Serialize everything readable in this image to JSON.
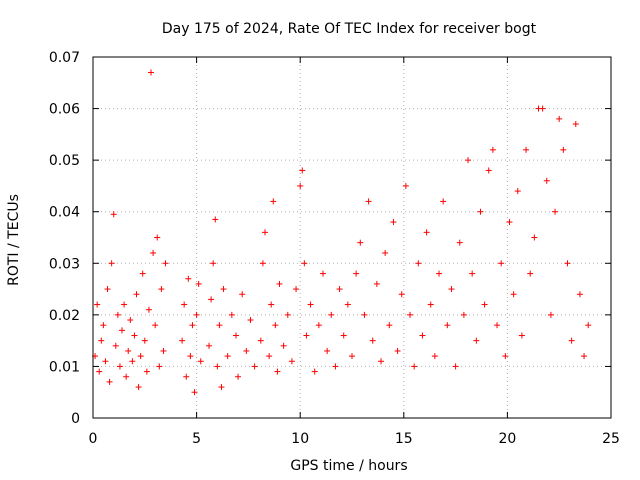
{
  "chart_data": {
    "type": "scatter",
    "title": "Day 175 of 2024, Rate Of TEC Index for receiver bogt",
    "xlabel": "GPS time / hours",
    "ylabel": "ROTI / TECUs",
    "xlim": [
      0,
      25
    ],
    "ylim": [
      0,
      0.07
    ],
    "x_ticks": [
      0,
      5,
      10,
      15,
      20,
      25
    ],
    "x_tick_labels": [
      "0",
      "5",
      "10",
      "15",
      "20",
      "25"
    ],
    "y_ticks": [
      0,
      0.01,
      0.02,
      0.03,
      0.04,
      0.05,
      0.06,
      0.07
    ],
    "y_tick_labels": [
      "0",
      "0.01",
      "0.02",
      "0.03",
      "0.04",
      "0.05",
      "0.06",
      "0.07"
    ],
    "grid": true,
    "marker": "+",
    "marker_color": "#ff0000",
    "series": [
      {
        "name": "ROTI",
        "points": [
          [
            0.1,
            0.012
          ],
          [
            0.2,
            0.022
          ],
          [
            0.3,
            0.009
          ],
          [
            0.4,
            0.015
          ],
          [
            0.5,
            0.018
          ],
          [
            0.6,
            0.011
          ],
          [
            0.7,
            0.025
          ],
          [
            0.8,
            0.007
          ],
          [
            0.9,
            0.03
          ],
          [
            1.0,
            0.0395
          ],
          [
            1.1,
            0.014
          ],
          [
            1.2,
            0.02
          ],
          [
            1.3,
            0.01
          ],
          [
            1.4,
            0.017
          ],
          [
            1.5,
            0.022
          ],
          [
            1.6,
            0.008
          ],
          [
            1.7,
            0.013
          ],
          [
            1.8,
            0.019
          ],
          [
            1.9,
            0.011
          ],
          [
            2.0,
            0.016
          ],
          [
            2.1,
            0.024
          ],
          [
            2.2,
            0.006
          ],
          [
            2.3,
            0.012
          ],
          [
            2.4,
            0.028
          ],
          [
            2.5,
            0.015
          ],
          [
            2.6,
            0.009
          ],
          [
            2.7,
            0.021
          ],
          [
            2.8,
            0.067
          ],
          [
            2.9,
            0.032
          ],
          [
            3.0,
            0.018
          ],
          [
            3.1,
            0.035
          ],
          [
            3.2,
            0.01
          ],
          [
            3.3,
            0.025
          ],
          [
            3.4,
            0.013
          ],
          [
            3.5,
            0.03
          ],
          [
            4.3,
            0.015
          ],
          [
            4.4,
            0.022
          ],
          [
            4.5,
            0.008
          ],
          [
            4.6,
            0.027
          ],
          [
            4.7,
            0.012
          ],
          [
            4.8,
            0.018
          ],
          [
            4.9,
            0.005
          ],
          [
            5.0,
            0.02
          ],
          [
            5.1,
            0.026
          ],
          [
            5.2,
            0.011
          ],
          [
            5.6,
            0.014
          ],
          [
            5.7,
            0.023
          ],
          [
            5.8,
            0.03
          ],
          [
            5.9,
            0.0385
          ],
          [
            6.0,
            0.01
          ],
          [
            6.1,
            0.018
          ],
          [
            6.2,
            0.006
          ],
          [
            6.3,
            0.025
          ],
          [
            6.5,
            0.012
          ],
          [
            6.7,
            0.02
          ],
          [
            6.9,
            0.016
          ],
          [
            7.0,
            0.008
          ],
          [
            7.2,
            0.024
          ],
          [
            7.4,
            0.013
          ],
          [
            7.6,
            0.019
          ],
          [
            7.8,
            0.01
          ],
          [
            8.1,
            0.015
          ],
          [
            8.2,
            0.03
          ],
          [
            8.3,
            0.036
          ],
          [
            8.5,
            0.012
          ],
          [
            8.6,
            0.022
          ],
          [
            8.7,
            0.042
          ],
          [
            8.8,
            0.018
          ],
          [
            8.9,
            0.009
          ],
          [
            9.0,
            0.026
          ],
          [
            9.2,
            0.014
          ],
          [
            9.4,
            0.02
          ],
          [
            9.6,
            0.011
          ],
          [
            9.8,
            0.025
          ],
          [
            10.0,
            0.045
          ],
          [
            10.1,
            0.048
          ],
          [
            10.2,
            0.03
          ],
          [
            10.3,
            0.016
          ],
          [
            10.5,
            0.022
          ],
          [
            10.7,
            0.009
          ],
          [
            10.9,
            0.018
          ],
          [
            11.1,
            0.028
          ],
          [
            11.3,
            0.013
          ],
          [
            11.5,
            0.02
          ],
          [
            11.7,
            0.01
          ],
          [
            11.9,
            0.025
          ],
          [
            12.1,
            0.016
          ],
          [
            12.3,
            0.022
          ],
          [
            12.5,
            0.012
          ],
          [
            12.7,
            0.028
          ],
          [
            12.9,
            0.034
          ],
          [
            13.1,
            0.02
          ],
          [
            13.3,
            0.042
          ],
          [
            13.5,
            0.015
          ],
          [
            13.7,
            0.026
          ],
          [
            13.9,
            0.011
          ],
          [
            14.1,
            0.032
          ],
          [
            14.3,
            0.018
          ],
          [
            14.5,
            0.038
          ],
          [
            14.7,
            0.013
          ],
          [
            14.9,
            0.024
          ],
          [
            15.1,
            0.045
          ],
          [
            15.3,
            0.02
          ],
          [
            15.5,
            0.01
          ],
          [
            15.7,
            0.03
          ],
          [
            15.9,
            0.016
          ],
          [
            16.1,
            0.036
          ],
          [
            16.3,
            0.022
          ],
          [
            16.5,
            0.012
          ],
          [
            16.7,
            0.028
          ],
          [
            16.9,
            0.042
          ],
          [
            17.1,
            0.018
          ],
          [
            17.3,
            0.025
          ],
          [
            17.5,
            0.01
          ],
          [
            17.7,
            0.034
          ],
          [
            17.9,
            0.02
          ],
          [
            18.1,
            0.05
          ],
          [
            18.3,
            0.028
          ],
          [
            18.5,
            0.015
          ],
          [
            18.7,
            0.04
          ],
          [
            18.9,
            0.022
          ],
          [
            19.1,
            0.048
          ],
          [
            19.3,
            0.052
          ],
          [
            19.5,
            0.018
          ],
          [
            19.7,
            0.03
          ],
          [
            19.9,
            0.012
          ],
          [
            20.1,
            0.038
          ],
          [
            20.3,
            0.024
          ],
          [
            20.5,
            0.044
          ],
          [
            20.7,
            0.016
          ],
          [
            20.9,
            0.052
          ],
          [
            21.1,
            0.028
          ],
          [
            21.3,
            0.035
          ],
          [
            21.5,
            0.06
          ],
          [
            21.7,
            0.06
          ],
          [
            21.9,
            0.046
          ],
          [
            22.1,
            0.02
          ],
          [
            22.3,
            0.04
          ],
          [
            22.5,
            0.058
          ],
          [
            22.7,
            0.052
          ],
          [
            22.9,
            0.03
          ],
          [
            23.1,
            0.015
          ],
          [
            23.3,
            0.057
          ],
          [
            23.5,
            0.024
          ],
          [
            23.7,
            0.012
          ],
          [
            23.9,
            0.018
          ]
        ]
      }
    ]
  }
}
